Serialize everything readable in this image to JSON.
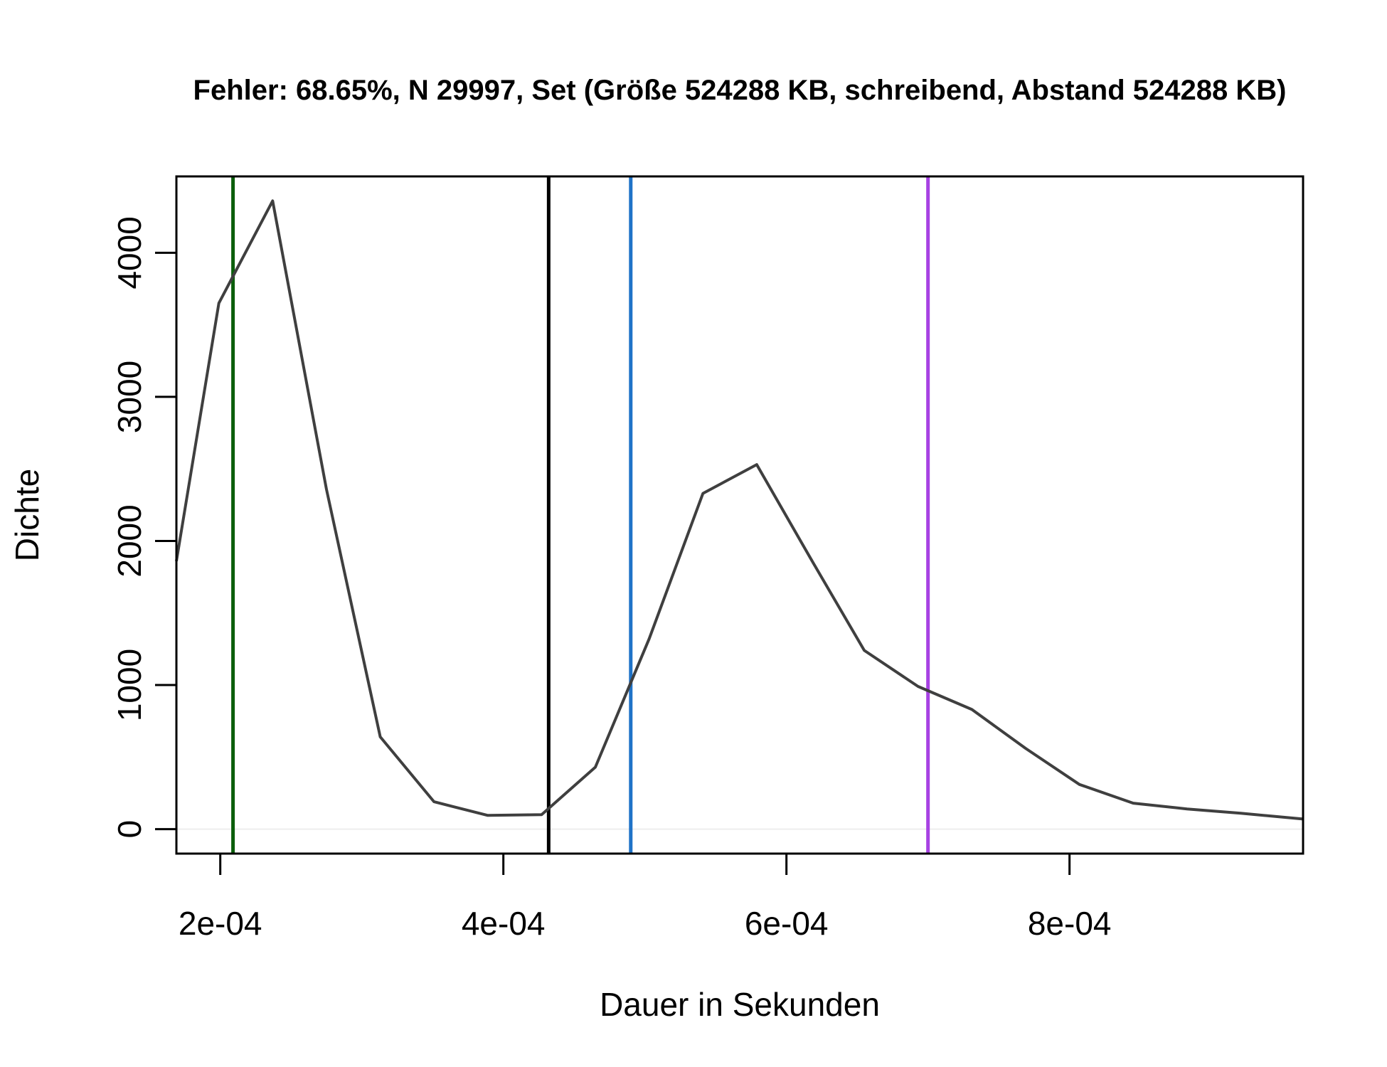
{
  "chart_data": {
    "type": "line",
    "title": "Fehler: 68.65%, N 29997, Set (Größe 524288 KB, schreibend, Abstand 524288 KB)",
    "xlabel": "Dauer in Sekunden",
    "ylabel": "Dichte",
    "xlim": [
      0.000169,
      0.000965
    ],
    "ylim": [
      -170,
      4530
    ],
    "x_ticks": [
      0.0002,
      0.0004,
      0.0006,
      0.0008
    ],
    "x_tick_labels": [
      "2e-04",
      "4e-04",
      "6e-04",
      "8e-04"
    ],
    "y_ticks": [
      0,
      1000,
      2000,
      3000,
      4000
    ],
    "y_tick_labels": [
      "0",
      "1000",
      "2000",
      "3000",
      "4000"
    ],
    "series": [
      {
        "color": "#3f3f3f",
        "x": [
          0.000169,
          0.000199,
          0.000237,
          0.000275,
          0.000313,
          0.000351,
          0.000389,
          0.000427,
          0.000465,
          0.000503,
          0.000541,
          0.000579,
          0.000617,
          0.000655,
          0.000693,
          0.000731,
          0.000769,
          0.000807,
          0.000845,
          0.000883,
          0.000921,
          0.000965
        ],
        "y": [
          1860,
          3650,
          4360,
          2360,
          640,
          190,
          95,
          100,
          430,
          1320,
          2330,
          2530,
          1880,
          1240,
          990,
          830,
          560,
          310,
          180,
          140,
          110,
          70
        ]
      }
    ],
    "vlines": [
      {
        "x": 0.000209,
        "color": "#0b5e0b"
      },
      {
        "x": 0.000432,
        "color": "#000000"
      },
      {
        "x": 0.00049,
        "color": "#1f73c8"
      },
      {
        "x": 0.0007,
        "color": "#a742e3"
      }
    ],
    "zero_line_color": "#eeeeee",
    "grid": false,
    "legend": "none"
  }
}
